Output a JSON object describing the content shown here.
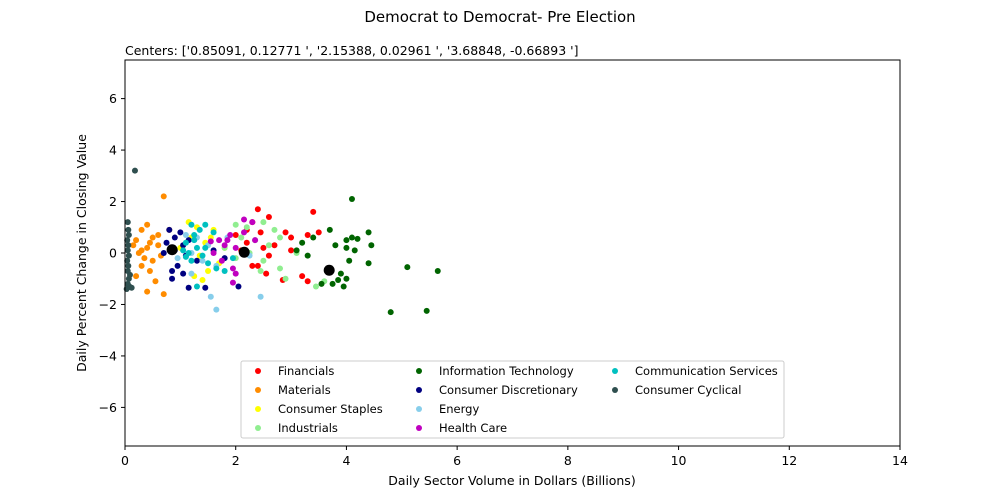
{
  "chart_data": {
    "type": "scatter",
    "title": "Democrat to Democrat- Pre Election",
    "subtitle": "Centers: ['0.85091, 0.12771 ', '2.15388, 0.02961 ', '3.68848, -0.66893 ']",
    "xlabel": "Daily Sector Volume in Dollars (Billions)",
    "ylabel": "Daily Percent Change in Closing Value",
    "xlim": [
      0,
      14
    ],
    "ylim": [
      -7.5,
      7.5
    ],
    "xticks": [
      0,
      2,
      4,
      6,
      8,
      10,
      12,
      14
    ],
    "yticks": [
      -6,
      -4,
      -2,
      0,
      2,
      4,
      6
    ],
    "ytick_labels": [
      "−6",
      "−4",
      "−2",
      "0",
      "2",
      "4",
      "6"
    ],
    "grid": false,
    "legend_position": "bottom-center",
    "series": [
      {
        "name": "Financials",
        "color": "#ff0000",
        "points": [
          [
            2.4,
            1.7
          ],
          [
            2.3,
            1.2
          ],
          [
            2.6,
            1.4
          ],
          [
            3.4,
            1.6
          ],
          [
            2.2,
            0.9
          ],
          [
            2.45,
            0.8
          ],
          [
            2.9,
            0.8
          ],
          [
            3.0,
            0.6
          ],
          [
            3.3,
            0.7
          ],
          [
            3.5,
            0.8
          ],
          [
            2.2,
            0.4
          ],
          [
            2.5,
            0.2
          ],
          [
            2.7,
            0.3
          ],
          [
            3.0,
            0.1
          ],
          [
            2.4,
            -0.5
          ],
          [
            2.6,
            -0.1
          ],
          [
            3.2,
            -0.9
          ],
          [
            3.3,
            -1.1
          ],
          [
            2.85,
            -1.05
          ],
          [
            2.55,
            -0.8
          ],
          [
            2.1,
            0.1
          ],
          [
            2.3,
            -0.5
          ],
          [
            2.0,
            0.7
          ]
        ]
      },
      {
        "name": "Materials",
        "color": "#ff8c00",
        "points": [
          [
            0.7,
            2.2
          ],
          [
            0.4,
            1.1
          ],
          [
            0.3,
            0.9
          ],
          [
            0.5,
            0.6
          ],
          [
            0.2,
            0.5
          ],
          [
            0.6,
            0.3
          ],
          [
            0.4,
            0.2
          ],
          [
            0.25,
            0.0
          ],
          [
            0.35,
            -0.2
          ],
          [
            0.3,
            -0.5
          ],
          [
            0.45,
            -0.7
          ],
          [
            0.2,
            -0.9
          ],
          [
            0.55,
            -1.1
          ],
          [
            0.4,
            -1.5
          ],
          [
            0.7,
            -1.6
          ],
          [
            0.8,
            0.9
          ],
          [
            0.6,
            0.7
          ],
          [
            0.3,
            0.1
          ],
          [
            0.5,
            -0.3
          ],
          [
            0.15,
            0.3
          ],
          [
            0.45,
            0.4
          ],
          [
            0.65,
            -0.1
          ]
        ]
      },
      {
        "name": "Consumer Staples",
        "color": "#ffff00",
        "points": [
          [
            1.15,
            1.2
          ],
          [
            1.3,
            1.0
          ],
          [
            1.6,
            0.9
          ],
          [
            1.2,
            0.6
          ],
          [
            1.45,
            0.4
          ],
          [
            1.0,
            0.2
          ],
          [
            1.35,
            -0.1
          ],
          [
            1.7,
            -0.4
          ],
          [
            1.5,
            -0.7
          ],
          [
            1.25,
            -0.9
          ],
          [
            1.4,
            -1.05
          ],
          [
            1.55,
            0.6
          ],
          [
            1.8,
            0.2
          ]
        ]
      },
      {
        "name": "Industrials",
        "color": "#90ee90",
        "points": [
          [
            2.0,
            1.1
          ],
          [
            2.2,
            1.0
          ],
          [
            2.5,
            1.2
          ],
          [
            2.1,
            0.6
          ],
          [
            2.35,
            0.5
          ],
          [
            2.6,
            0.3
          ],
          [
            2.8,
            0.6
          ],
          [
            2.25,
            0.0
          ],
          [
            2.5,
            -0.3
          ],
          [
            2.45,
            -0.7
          ],
          [
            2.8,
            -0.6
          ],
          [
            2.9,
            -1.0
          ],
          [
            3.6,
            -1.1
          ],
          [
            3.45,
            -1.3
          ],
          [
            3.1,
            0.0
          ],
          [
            2.0,
            -0.2
          ],
          [
            1.8,
            0.2
          ],
          [
            2.7,
            0.9
          ]
        ]
      },
      {
        "name": "Information Technology",
        "color": "#006400",
        "points": [
          [
            4.1,
            2.1
          ],
          [
            3.7,
            0.9
          ],
          [
            4.1,
            0.6
          ],
          [
            4.0,
            0.5
          ],
          [
            4.2,
            0.55
          ],
          [
            4.4,
            0.8
          ],
          [
            4.45,
            0.3
          ],
          [
            3.8,
            0.3
          ],
          [
            4.0,
            0.2
          ],
          [
            4.15,
            0.1
          ],
          [
            4.05,
            -0.3
          ],
          [
            3.9,
            -0.8
          ],
          [
            4.0,
            -1.0
          ],
          [
            3.75,
            -1.2
          ],
          [
            3.85,
            -1.05
          ],
          [
            4.4,
            -0.4
          ],
          [
            5.1,
            -0.55
          ],
          [
            5.65,
            -0.7
          ],
          [
            4.8,
            -2.3
          ],
          [
            5.45,
            -2.25
          ],
          [
            3.55,
            -1.2
          ],
          [
            3.95,
            -1.3
          ],
          [
            3.4,
            0.6
          ],
          [
            3.1,
            0.1
          ],
          [
            3.3,
            -0.1
          ],
          [
            3.2,
            0.4
          ]
        ]
      },
      {
        "name": "Consumer Discretionary",
        "color": "#000080",
        "points": [
          [
            0.8,
            0.9
          ],
          [
            1.0,
            0.8
          ],
          [
            0.9,
            0.6
          ],
          [
            1.15,
            0.5
          ],
          [
            0.75,
            0.4
          ],
          [
            1.05,
            0.3
          ],
          [
            0.9,
            0.1
          ],
          [
            0.7,
            0.0
          ],
          [
            1.1,
            -0.1
          ],
          [
            1.3,
            -0.3
          ],
          [
            0.95,
            -0.5
          ],
          [
            0.85,
            -0.7
          ],
          [
            1.05,
            -0.8
          ],
          [
            0.85,
            -1.0
          ],
          [
            1.15,
            -1.35
          ],
          [
            1.45,
            -1.35
          ],
          [
            2.05,
            -1.3
          ],
          [
            1.6,
            0.1
          ],
          [
            1.8,
            -0.2
          ]
        ]
      },
      {
        "name": "Energy",
        "color": "#87ceeb",
        "points": [
          [
            1.1,
            0.7
          ],
          [
            1.3,
            0.6
          ],
          [
            1.5,
            0.3
          ],
          [
            1.2,
            0.0
          ],
          [
            1.4,
            -0.3
          ],
          [
            1.65,
            -0.5
          ],
          [
            1.55,
            -1.7
          ],
          [
            1.65,
            -2.2
          ],
          [
            2.45,
            -1.7
          ],
          [
            1.2,
            -0.8
          ],
          [
            0.95,
            -0.2
          ],
          [
            1.85,
            0.6
          ],
          [
            2.25,
            -0.1
          ]
        ]
      },
      {
        "name": "Health Care",
        "color": "#c000c0",
        "points": [
          [
            2.15,
            1.3
          ],
          [
            2.3,
            1.2
          ],
          [
            1.9,
            0.7
          ],
          [
            1.7,
            0.5
          ],
          [
            1.8,
            0.3
          ],
          [
            2.0,
            0.2
          ],
          [
            1.6,
            0.0
          ],
          [
            1.75,
            -0.3
          ],
          [
            1.95,
            -0.6
          ],
          [
            2.0,
            -0.8
          ],
          [
            1.95,
            -1.15
          ],
          [
            2.35,
            0.5
          ],
          [
            2.15,
            0.8
          ],
          [
            1.55,
            0.45
          ],
          [
            1.85,
            0.5
          ]
        ]
      },
      {
        "name": "Communication Services",
        "color": "#00c0c0",
        "points": [
          [
            1.2,
            1.1
          ],
          [
            1.35,
            0.9
          ],
          [
            1.45,
            1.1
          ],
          [
            1.25,
            0.7
          ],
          [
            1.1,
            0.4
          ],
          [
            1.3,
            0.2
          ],
          [
            1.15,
            0.0
          ],
          [
            1.4,
            -0.1
          ],
          [
            1.2,
            -0.3
          ],
          [
            1.5,
            -0.4
          ],
          [
            1.65,
            -0.6
          ],
          [
            1.8,
            -0.7
          ],
          [
            1.95,
            -0.2
          ],
          [
            1.3,
            -1.3
          ],
          [
            1.6,
            0.8
          ],
          [
            1.05,
            0.1
          ],
          [
            1.25,
            0.5
          ],
          [
            1.45,
            0.2
          ],
          [
            1.1,
            -0.15
          ]
        ]
      },
      {
        "name": "Consumer Cyclical",
        "color": "#2f4f4f",
        "points": [
          [
            0.18,
            3.2
          ],
          [
            0.05,
            1.2
          ],
          [
            0.06,
            0.9
          ],
          [
            0.07,
            0.7
          ],
          [
            0.04,
            0.5
          ],
          [
            0.06,
            0.3
          ],
          [
            0.05,
            0.1
          ],
          [
            0.07,
            -0.1
          ],
          [
            0.04,
            -0.3
          ],
          [
            0.06,
            -0.5
          ],
          [
            0.05,
            -0.7
          ],
          [
            0.07,
            -1.0
          ],
          [
            0.05,
            -1.2
          ],
          [
            0.08,
            -1.3
          ],
          [
            0.12,
            -1.35
          ],
          [
            0.03,
            -1.4
          ],
          [
            0.09,
            -0.85
          ]
        ]
      }
    ],
    "centers": {
      "color": "#000000",
      "points": [
        [
          0.85091,
          0.12771
        ],
        [
          2.15388,
          0.02961
        ],
        [
          3.68848,
          -0.66893
        ]
      ]
    }
  }
}
